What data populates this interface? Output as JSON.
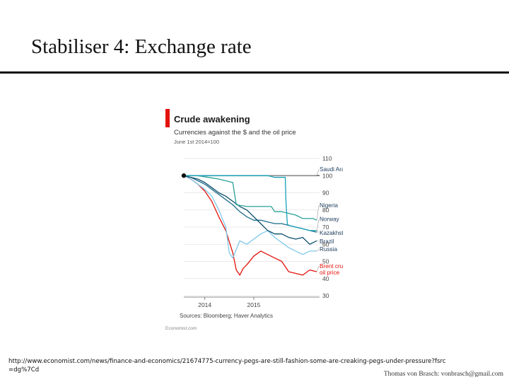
{
  "slide": {
    "title": "Stabiliser 4: Exchange rate",
    "source_url": "http://www.economist.com/news/finance-and-economics/21674775-currency-pegs-are-still-fashion-some-are-creaking-pegs-under-pressure?fsrc=dg%7Cd",
    "author": "Thomas von Brasch: vonbrasch@gmail.com"
  },
  "chart_data": {
    "type": "line",
    "title": "Crude awakening",
    "subtitle": "Currencies against the $ and the oil price",
    "note": "June 1st 2014=100",
    "source": "Sources: Bloomberg; Haver Analytics",
    "brand": "Economist.com",
    "ylim": [
      30,
      110
    ],
    "yticks": [
      30,
      40,
      50,
      60,
      70,
      80,
      90,
      100,
      110
    ],
    "xlim": [
      0,
      19
    ],
    "xticks": [
      {
        "label": "2014",
        "x": 3
      },
      {
        "label": "2015",
        "x": 10
      }
    ],
    "grid": true,
    "reference_line": 100,
    "colors": {
      "accent": "#e3120b",
      "saudi": "#8a8a8a",
      "nigeria": "#2aa198",
      "norway": "#1b6b8a",
      "kazakhstan": "#17a2b8",
      "brazil": "#0b4f6c",
      "russia": "#7dc8ea",
      "oil": "#e3120b"
    },
    "series": [
      {
        "name": "Saudi Arabia",
        "color": "#8a8a8a",
        "values": [
          [
            0,
            100
          ],
          [
            19,
            100
          ]
        ]
      },
      {
        "name": "Nigeria",
        "color": "#2aa198",
        "values": [
          [
            0,
            100
          ],
          [
            2,
            100
          ],
          [
            3.5,
            99
          ],
          [
            5,
            98
          ],
          [
            6,
            97
          ],
          [
            7,
            96
          ],
          [
            7.5,
            83
          ],
          [
            9,
            82
          ],
          [
            11,
            82
          ],
          [
            12.5,
            82
          ],
          [
            13,
            79
          ],
          [
            14,
            79
          ],
          [
            16,
            77
          ],
          [
            17,
            75
          ],
          [
            18.5,
            75
          ],
          [
            19,
            74
          ]
        ]
      },
      {
        "name": "Norway",
        "color": "#1b6b8a",
        "values": [
          [
            0,
            100
          ],
          [
            1,
            99
          ],
          [
            2,
            97
          ],
          [
            3,
            95
          ],
          [
            4,
            92
          ],
          [
            5,
            89
          ],
          [
            6,
            86
          ],
          [
            7,
            83
          ],
          [
            8,
            79
          ],
          [
            9,
            76
          ],
          [
            10,
            74
          ],
          [
            11,
            74
          ],
          [
            12,
            73
          ],
          [
            13,
            72
          ],
          [
            14,
            72
          ],
          [
            15,
            71
          ],
          [
            16,
            70
          ],
          [
            17,
            69
          ],
          [
            18,
            68
          ],
          [
            19,
            67
          ]
        ]
      },
      {
        "name": "Kazakhstan",
        "color": "#17a2b8",
        "values": [
          [
            0,
            100
          ],
          [
            2,
            100
          ],
          [
            4,
            100
          ],
          [
            6,
            100
          ],
          [
            8,
            100
          ],
          [
            10,
            100
          ],
          [
            12,
            100
          ],
          [
            13,
            99
          ],
          [
            14,
            99
          ],
          [
            14.5,
            99
          ],
          [
            14.6,
            85
          ],
          [
            14.8,
            72
          ],
          [
            15,
            71
          ],
          [
            16,
            70
          ],
          [
            17,
            69
          ],
          [
            18,
            68
          ],
          [
            19,
            68
          ]
        ]
      },
      {
        "name": "Brazil",
        "color": "#0b4f6c",
        "values": [
          [
            0,
            100
          ],
          [
            1,
            99
          ],
          [
            2,
            98
          ],
          [
            3,
            96
          ],
          [
            4,
            93
          ],
          [
            5,
            90
          ],
          [
            6,
            88
          ],
          [
            7,
            85
          ],
          [
            8,
            82
          ],
          [
            9,
            80
          ],
          [
            10,
            76
          ],
          [
            11,
            72
          ],
          [
            12,
            68
          ],
          [
            13,
            66
          ],
          [
            14,
            66
          ],
          [
            15,
            64
          ],
          [
            16,
            63
          ],
          [
            17,
            64
          ],
          [
            18,
            60
          ],
          [
            19,
            62
          ]
        ]
      },
      {
        "name": "Russia",
        "color": "#7dc8ea",
        "values": [
          [
            0,
            100
          ],
          [
            1,
            98
          ],
          [
            2,
            95
          ],
          [
            3,
            92
          ],
          [
            4,
            88
          ],
          [
            5,
            80
          ],
          [
            6,
            70
          ],
          [
            6.5,
            55
          ],
          [
            7,
            52
          ],
          [
            8,
            62
          ],
          [
            9,
            60
          ],
          [
            10,
            63
          ],
          [
            11,
            66
          ],
          [
            12,
            68
          ],
          [
            13,
            64
          ],
          [
            14,
            61
          ],
          [
            15,
            58
          ],
          [
            16,
            56
          ],
          [
            17,
            54
          ],
          [
            18,
            56
          ],
          [
            19,
            56
          ]
        ]
      },
      {
        "name": "Brent crude oil price",
        "color": "#e3120b",
        "values": [
          [
            0,
            100
          ],
          [
            1,
            98
          ],
          [
            2,
            95
          ],
          [
            3,
            91
          ],
          [
            4,
            85
          ],
          [
            5,
            76
          ],
          [
            6,
            68
          ],
          [
            7,
            55
          ],
          [
            7.5,
            45
          ],
          [
            8,
            42
          ],
          [
            8.5,
            46
          ],
          [
            9,
            48
          ],
          [
            10,
            53
          ],
          [
            11,
            56
          ],
          [
            12,
            54
          ],
          [
            13,
            52
          ],
          [
            14,
            50
          ],
          [
            15,
            44
          ],
          [
            16,
            43
          ],
          [
            17,
            42
          ],
          [
            18,
            45
          ],
          [
            19,
            44
          ]
        ]
      }
    ],
    "labels": [
      {
        "series": 0,
        "text": "Saudi Arabia",
        "y": 102.5
      },
      {
        "series": 1,
        "text": "Nigeria",
        "y": 81.5
      },
      {
        "series": 2,
        "text": "Norway",
        "y": 73.5
      },
      {
        "series": 3,
        "text": "Kazakhstan",
        "y": 65.5
      },
      {
        "series": 4,
        "text": "Brazil",
        "y": 60.5
      },
      {
        "series": 5,
        "text": "Russia",
        "y": 56
      },
      {
        "series": 6,
        "text": "Brent crude",
        "y": 46,
        "text2": "oil price"
      }
    ]
  }
}
